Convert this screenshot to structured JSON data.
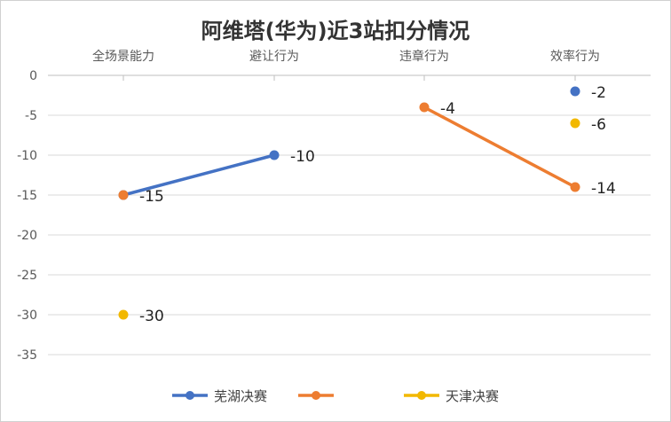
{
  "chart_data": {
    "type": "line",
    "title": "阿维塔(华为)近3站扣分情况",
    "categories": [
      "全场景能力",
      "避让行为",
      "违章行为",
      "效率行为"
    ],
    "ylim": [
      -35,
      0
    ],
    "yticks": [
      0,
      -5,
      -10,
      -15,
      -20,
      -25,
      -30,
      -35
    ],
    "ytick_labels": [
      "0",
      "-5",
      "-10",
      "-15",
      "-20",
      "-25",
      "-30",
      "-35"
    ],
    "x_axis_position": "top",
    "grid": true,
    "legend_position": "bottom",
    "series": [
      {
        "name": "芜湖决赛",
        "color": "#4472c4",
        "points": [
          {
            "category": "全场景能力",
            "value": -15,
            "label": "-15"
          },
          {
            "category": "避让行为",
            "value": -10,
            "label": "-10"
          },
          {
            "category": "效率行为",
            "value": -2,
            "label": "-2"
          }
        ],
        "segments": [
          [
            "全场景能力",
            "避让行为"
          ]
        ]
      },
      {
        "name": "",
        "color": "#ed7d31",
        "points": [
          {
            "category": "全场景能力",
            "value": -15,
            "label": ""
          },
          {
            "category": "违章行为",
            "value": -4,
            "label": "-4"
          },
          {
            "category": "效率行为",
            "value": -14,
            "label": "-14"
          }
        ],
        "segments": [
          [
            "违章行为",
            "效率行为"
          ]
        ]
      },
      {
        "name": "天津决赛",
        "color": "#f2b800",
        "points": [
          {
            "category": "全场景能力",
            "value": -30,
            "label": "-30"
          },
          {
            "category": "效率行为",
            "value": -6,
            "label": "-6"
          }
        ],
        "segments": []
      }
    ]
  }
}
